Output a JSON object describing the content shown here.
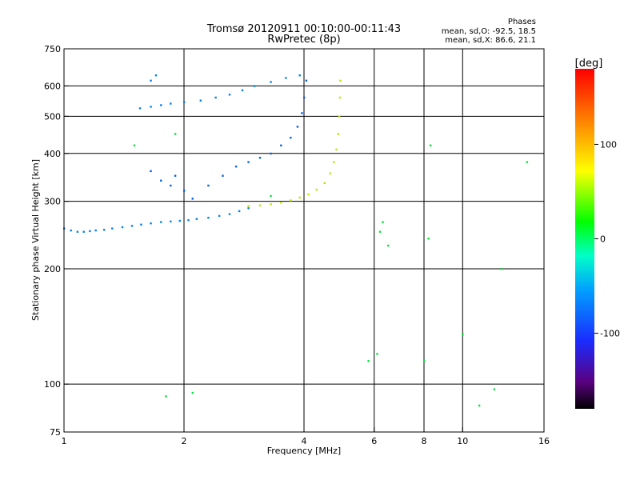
{
  "chart_data": {
    "type": "scatter",
    "title": "Tromsø 20120911 00:10:00-00:11:43",
    "subtitle": "RwPretec (8p)",
    "phase_stats": {
      "heading": "Phases",
      "line_o": "mean, sd,O: -92.5, 18.5",
      "line_x": "mean, sd,X: 86.6, 21.1"
    },
    "xlabel": "Frequency [MHz]",
    "ylabel": "Stationary phase Virtual Height [km]",
    "x_scale": "log",
    "y_scale": "log",
    "xlim": [
      1,
      16
    ],
    "ylim": [
      75,
      750
    ],
    "x_ticks": [
      1,
      2,
      4,
      6,
      8,
      10,
      16
    ],
    "x_tick_labels": [
      "1",
      "2",
      "4",
      "6",
      "8",
      "10",
      "16"
    ],
    "y_ticks": [
      75,
      100,
      200,
      300,
      400,
      500,
      600,
      750
    ],
    "y_tick_labels": [
      "75",
      "100",
      "200",
      "300",
      "400",
      "500",
      "600",
      "750"
    ],
    "x_grid": [
      2,
      4,
      6,
      8,
      10
    ],
    "y_grid": [
      100,
      200,
      300,
      400,
      500,
      600
    ],
    "grid": true,
    "colorbar": {
      "label": "[deg]",
      "min": -180,
      "max": 180,
      "ticks": [
        100,
        0,
        -100
      ],
      "tick_labels": [
        "100",
        "0",
        "-100"
      ],
      "colormap": "rainbow"
    },
    "series": [
      {
        "trace": "o_mode_lower",
        "phase_deg": -95,
        "points": [
          [
            1.0,
            255
          ],
          [
            1.04,
            252
          ],
          [
            1.08,
            250
          ],
          [
            1.12,
            250
          ],
          [
            1.16,
            251
          ],
          [
            1.2,
            252
          ],
          [
            1.26,
            253
          ],
          [
            1.32,
            255
          ],
          [
            1.4,
            257
          ],
          [
            1.48,
            259
          ],
          [
            1.56,
            261
          ],
          [
            1.65,
            263
          ],
          [
            1.75,
            265
          ],
          [
            1.85,
            266
          ],
          [
            1.95,
            267
          ],
          [
            2.05,
            268
          ],
          [
            2.15,
            270
          ],
          [
            2.3,
            272
          ],
          [
            2.45,
            275
          ],
          [
            2.6,
            278
          ],
          [
            2.75,
            283
          ],
          [
            2.9,
            288
          ]
        ]
      },
      {
        "trace": "o_mode_upper_branch",
        "phase_deg": -105,
        "points": [
          [
            1.65,
            360
          ],
          [
            1.75,
            340
          ],
          [
            1.85,
            330
          ],
          [
            1.9,
            350
          ],
          [
            2.0,
            320
          ],
          [
            2.1,
            305
          ],
          [
            2.3,
            330
          ],
          [
            2.5,
            350
          ],
          [
            2.7,
            370
          ],
          [
            2.9,
            380
          ],
          [
            3.1,
            390
          ],
          [
            3.3,
            400
          ],
          [
            3.5,
            420
          ],
          [
            3.7,
            440
          ],
          [
            3.85,
            470
          ],
          [
            3.95,
            510
          ],
          [
            4.0,
            560
          ],
          [
            4.05,
            620
          ]
        ]
      },
      {
        "trace": "o_mode_top",
        "phase_deg": -95,
        "points": [
          [
            1.55,
            525
          ],
          [
            1.65,
            530
          ],
          [
            1.75,
            535
          ],
          [
            1.85,
            540
          ],
          [
            2.0,
            545
          ],
          [
            2.2,
            550
          ],
          [
            2.4,
            560
          ],
          [
            2.6,
            570
          ],
          [
            2.8,
            585
          ],
          [
            3.0,
            600
          ],
          [
            3.3,
            615
          ],
          [
            3.6,
            630
          ],
          [
            3.9,
            640
          ],
          [
            1.65,
            620
          ],
          [
            1.7,
            640
          ]
        ]
      },
      {
        "trace": "x_mode",
        "phase_deg": 85,
        "points": [
          [
            2.9,
            292
          ],
          [
            3.1,
            293
          ],
          [
            3.3,
            295
          ],
          [
            3.5,
            298
          ],
          [
            3.7,
            302
          ],
          [
            3.9,
            307
          ],
          [
            4.1,
            313
          ],
          [
            4.3,
            322
          ],
          [
            4.5,
            335
          ],
          [
            4.65,
            355
          ],
          [
            4.75,
            380
          ],
          [
            4.82,
            410
          ],
          [
            4.87,
            450
          ],
          [
            4.9,
            500
          ],
          [
            4.92,
            560
          ],
          [
            4.93,
            620
          ]
        ]
      },
      {
        "trace": "scattered_echoes",
        "phase_deg": 0,
        "points": [
          [
            6.2,
            250
          ],
          [
            6.3,
            265
          ],
          [
            6.5,
            230
          ],
          [
            8.2,
            240
          ],
          [
            8.3,
            420
          ],
          [
            12.5,
            200
          ],
          [
            14.5,
            380
          ],
          [
            5.8,
            115
          ],
          [
            6.1,
            120
          ],
          [
            8.0,
            115
          ],
          [
            1.8,
            93
          ],
          [
            2.1,
            95
          ],
          [
            12.0,
            97
          ],
          [
            11.0,
            88
          ],
          [
            10.0,
            135
          ],
          [
            3.3,
            310
          ],
          [
            1.5,
            420
          ],
          [
            1.9,
            450
          ]
        ]
      }
    ]
  }
}
